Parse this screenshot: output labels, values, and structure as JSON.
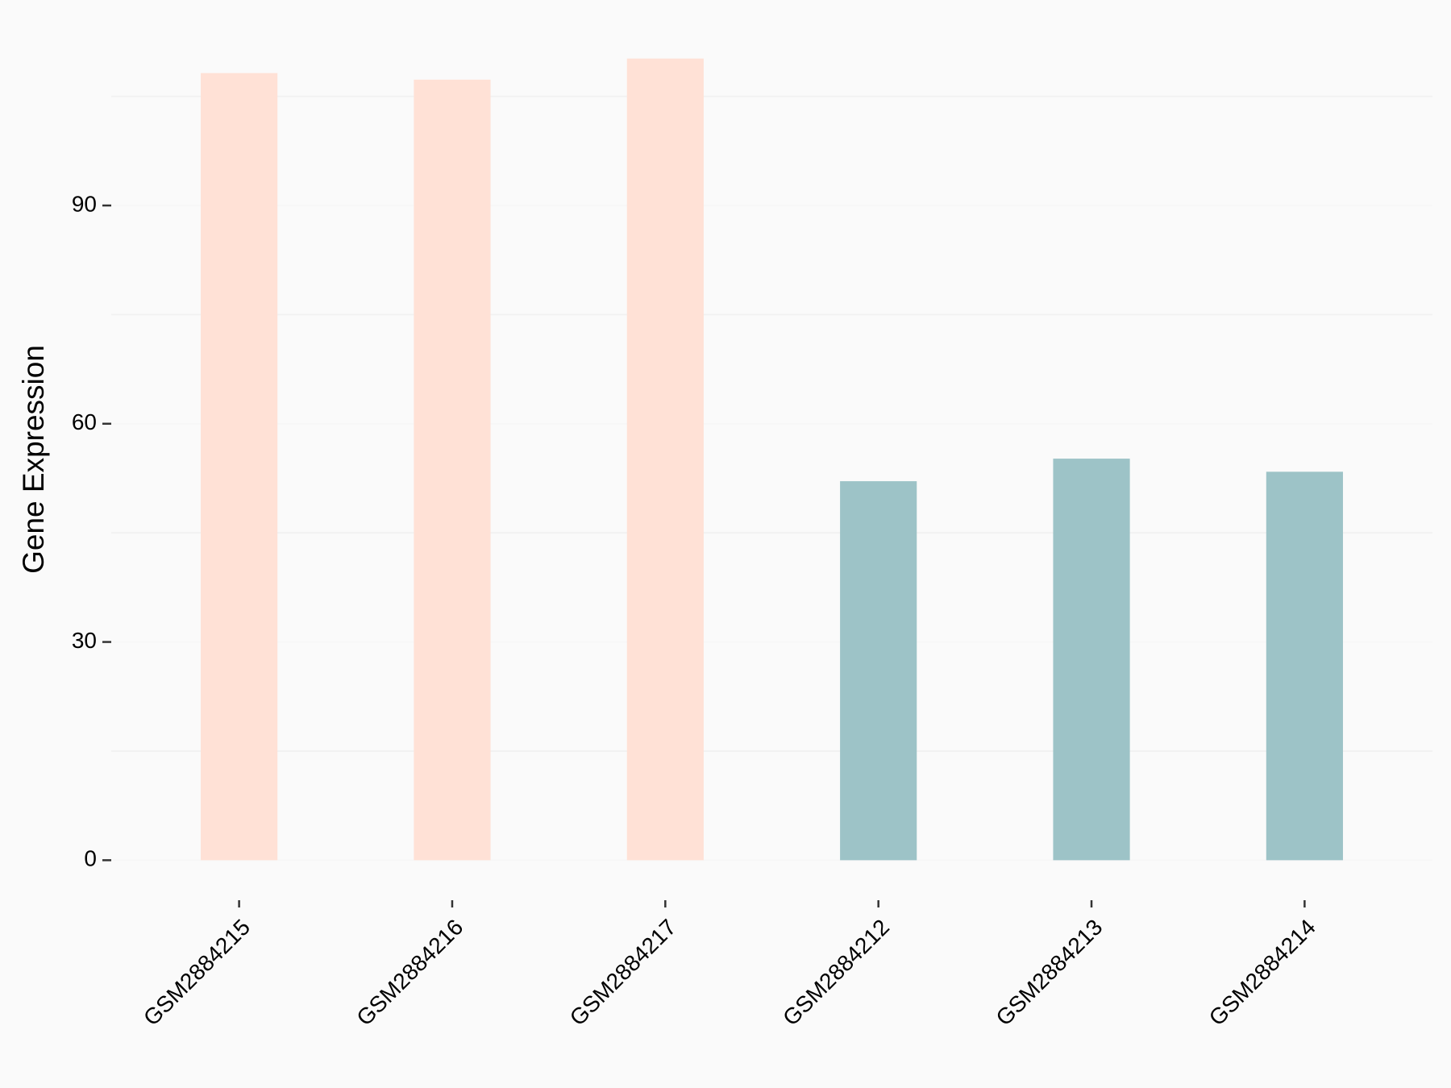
{
  "chart_data": {
    "type": "bar",
    "y_label": "Gene Expression",
    "categories": [
      "GSM2884215",
      "GSM2884216",
      "GSM2884217",
      "GSM2884212",
      "GSM2884213",
      "GSM2884214"
    ],
    "values": [
      108.2,
      107.3,
      110.2,
      52.1,
      55.2,
      53.4
    ],
    "colors": [
      "#ffe1d6",
      "#ffe1d6",
      "#ffe1d6",
      "#9dc3c7",
      "#9dc3c7",
      "#9dc3c7"
    ],
    "ylim": [
      -5.5,
      115.7
    ],
    "yticks": [
      0,
      30,
      60,
      90
    ],
    "minor_grid": [
      15,
      45,
      75,
      105
    ],
    "grid": true
  }
}
